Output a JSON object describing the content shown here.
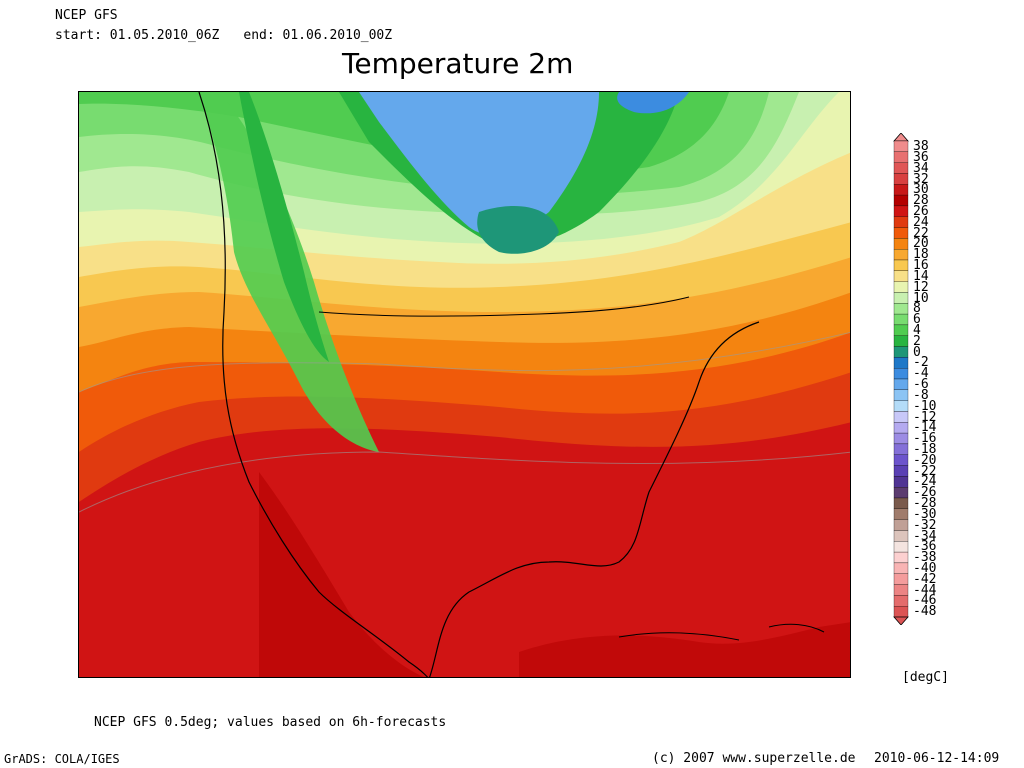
{
  "header": {
    "model": "NCEP GFS",
    "start": "start: 01.05.2010_06Z",
    "end": "end: 01.06.2010_00Z",
    "title": "Temperature 2m"
  },
  "legend": {
    "labels": [
      "38",
      "36",
      "34",
      "32",
      "30",
      "28",
      "26",
      "24",
      "22",
      "20",
      "18",
      "16",
      "14",
      "12",
      "10",
      "8",
      "6",
      "4",
      "2",
      "0",
      "-2",
      "-4",
      "-6",
      "-8",
      "-10",
      "-12",
      "-14",
      "-16",
      "-18",
      "-20",
      "-22",
      "-24",
      "-26",
      "-28",
      "-30",
      "-32",
      "-34",
      "-36",
      "-38",
      "-40",
      "-42",
      "-44",
      "-46",
      "-48"
    ],
    "colors": [
      "#f08c8c",
      "#e87070",
      "#e05656",
      "#d84040",
      "#c81818",
      "#b40000",
      "#d01414",
      "#e03a10",
      "#f05a0a",
      "#f48410",
      "#f8a830",
      "#f8c850",
      "#f8e088",
      "#e8f4b0",
      "#c8f0b0",
      "#a0e890",
      "#78dc70",
      "#50cc50",
      "#28b440",
      "#1e9678",
      "#1e78c8",
      "#3c8ce0",
      "#64a8ec",
      "#8cc4f4",
      "#b4dcf8",
      "#c8c8f8",
      "#b4aaf0",
      "#9c8ce4",
      "#8470d8",
      "#6c54cc",
      "#5a40b4",
      "#503494",
      "#5c3c70",
      "#7a5a4c",
      "#a07c6c",
      "#c0a096",
      "#dcc4bc",
      "#f4e4e0",
      "#fcd0d0",
      "#f8b4b4",
      "#f49c9c",
      "#ec8484",
      "#e46c6c",
      "#dc5454"
    ],
    "units": "[degC]"
  },
  "footer": {
    "footnote": "NCEP GFS 0.5deg; values based on 6h-forecasts",
    "grads": "GrADS: COLA/IGES",
    "copyright": "(c) 2007 www.superzelle.de",
    "timestamp": "2010-06-12-14:09"
  }
}
